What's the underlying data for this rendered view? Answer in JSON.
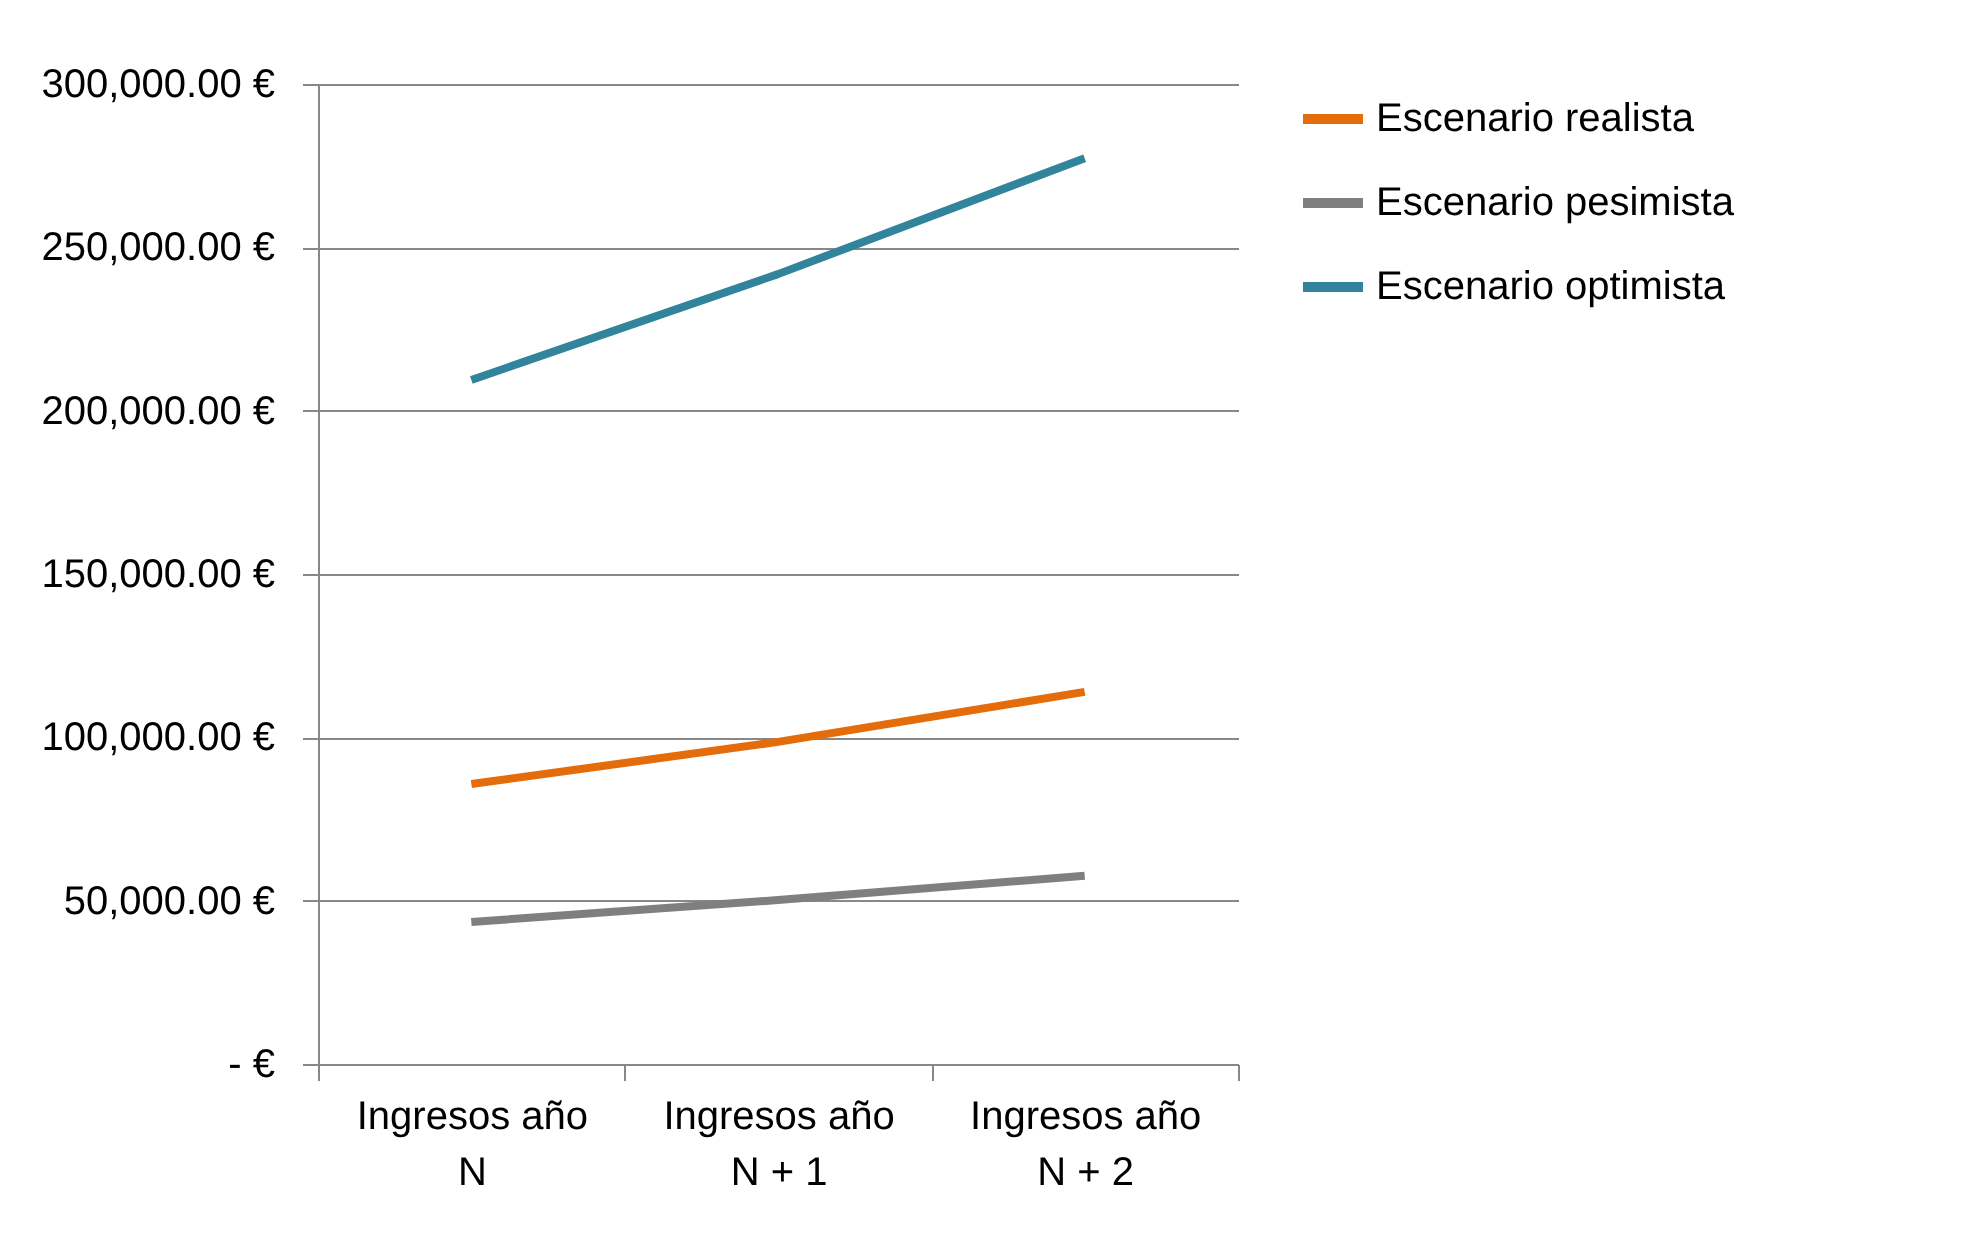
{
  "chart_data": {
    "type": "line",
    "categories": [
      "Ingresos año N",
      "Ingresos año N + 1",
      "Ingresos año N + 2"
    ],
    "series": [
      {
        "name": "Escenario realista",
        "color": "#e46c0a",
        "values": [
          85700,
          98600,
          113900
        ]
      },
      {
        "name": "Escenario pesimista",
        "color": "#7f7f7f",
        "values": [
          43500,
          50200,
          57600
        ]
      },
      {
        "name": "Escenario optimista",
        "color": "#31849b",
        "values": [
          209400,
          241800,
          277300
        ]
      }
    ],
    "ylim": [
      0,
      300000
    ],
    "yticks": [
      {
        "value": 0,
        "label": "-   €"
      },
      {
        "value": 50000,
        "label": "50,000.00 €"
      },
      {
        "value": 100000,
        "label": "100,000.00 €"
      },
      {
        "value": 150000,
        "label": "150,000.00 €"
      },
      {
        "value": 200000,
        "label": "200,000.00 €"
      },
      {
        "value": 250000,
        "label": "250,000.00 €"
      },
      {
        "value": 300000,
        "label": "300,000.00 €"
      }
    ],
    "grid": "y",
    "legend": "right",
    "marker": "none",
    "line_style": "solid"
  }
}
